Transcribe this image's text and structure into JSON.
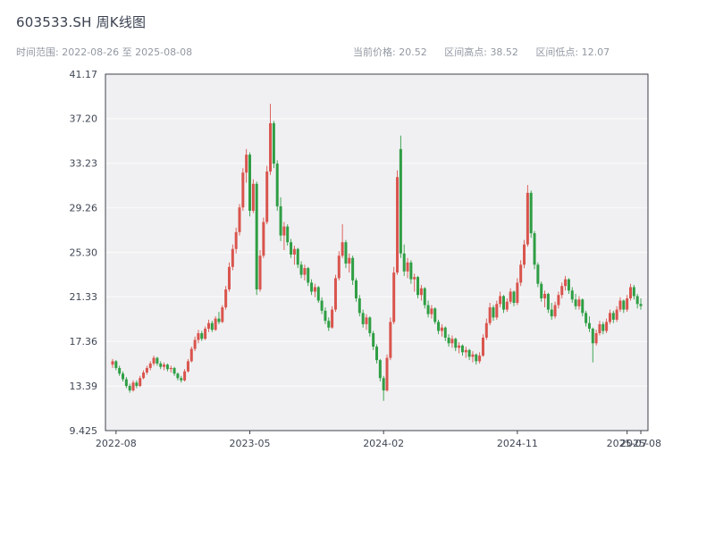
{
  "header": {
    "title": "603533.SH 周K线图",
    "time_range_label": "时间范围:",
    "start_date": "2022-08-26",
    "to_label": "至",
    "end_date": "2025-08-08",
    "metrics": [
      {
        "label": "当前价格:",
        "value": "20.52"
      },
      {
        "label": "区间高点:",
        "value": "38.52"
      },
      {
        "label": "区间低点:",
        "value": "12.07"
      }
    ]
  },
  "chart_data": {
    "type": "candlestick",
    "title": "603533.SH 周K线图",
    "xlabel": "",
    "ylabel": "",
    "grid": "horizontal",
    "legend": "none",
    "y_range": [
      9.425,
      41.17
    ],
    "y_ticks": [
      {
        "label": "41.17",
        "value": 41.17
      },
      {
        "label": "37.20",
        "value": 37.2
      },
      {
        "label": "33.23",
        "value": 33.23
      },
      {
        "label": "29.26",
        "value": 29.26
      },
      {
        "label": "25.30",
        "value": 25.3
      },
      {
        "label": "21.33",
        "value": 21.33
      },
      {
        "label": "17.36",
        "value": 17.36
      },
      {
        "label": "13.39",
        "value": 13.39
      },
      {
        "label": "9.425",
        "value": 9.425
      }
    ],
    "x_ticks": [
      {
        "label": "2022-08",
        "index": 1
      },
      {
        "label": "2023-05",
        "index": 40
      },
      {
        "label": "2024-02",
        "index": 79
      },
      {
        "label": "2024-11",
        "index": 118
      },
      {
        "label": "2025-07",
        "index": 150
      },
      {
        "label": "2025-08",
        "index": 154
      }
    ],
    "up_color": "#d9544d",
    "down_color": "#2f9e44",
    "plot_bg": "#f0f0f2",
    "grid_color": "#fafafb",
    "frame_color": "#3c4048",
    "candles": [
      [
        15.3,
        15.8,
        15.0,
        15.6
      ],
      [
        15.6,
        15.7,
        14.8,
        15.0
      ],
      [
        15.0,
        15.2,
        14.3,
        14.5
      ],
      [
        14.5,
        14.7,
        13.8,
        14.0
      ],
      [
        14.0,
        14.2,
        13.2,
        13.4
      ],
      [
        13.4,
        13.6,
        12.8,
        13.0
      ],
      [
        13.0,
        13.9,
        12.9,
        13.7
      ],
      [
        13.7,
        13.9,
        13.2,
        13.4
      ],
      [
        13.4,
        14.3,
        13.3,
        14.1
      ],
      [
        14.1,
        14.8,
        14.0,
        14.6
      ],
      [
        14.6,
        15.2,
        14.4,
        15.0
      ],
      [
        15.0,
        15.6,
        14.8,
        15.4
      ],
      [
        15.4,
        16.1,
        15.2,
        15.9
      ],
      [
        15.9,
        16.0,
        15.2,
        15.4
      ],
      [
        15.4,
        15.6,
        14.9,
        15.1
      ],
      [
        15.1,
        15.5,
        14.8,
        15.3
      ],
      [
        15.3,
        15.4,
        14.7,
        14.9
      ],
      [
        14.9,
        15.2,
        14.6,
        15.0
      ],
      [
        15.0,
        15.1,
        14.3,
        14.5
      ],
      [
        14.5,
        14.6,
        13.9,
        14.1
      ],
      [
        14.1,
        14.3,
        13.7,
        13.9
      ],
      [
        13.9,
        14.9,
        13.8,
        14.7
      ],
      [
        14.7,
        15.8,
        14.6,
        15.6
      ],
      [
        15.6,
        16.9,
        15.5,
        16.7
      ],
      [
        16.7,
        17.8,
        16.5,
        17.5
      ],
      [
        17.5,
        18.4,
        17.2,
        18.1
      ],
      [
        18.1,
        18.3,
        17.4,
        17.6
      ],
      [
        17.6,
        18.7,
        17.5,
        18.5
      ],
      [
        18.5,
        19.3,
        18.2,
        19.0
      ],
      [
        19.0,
        19.2,
        18.2,
        18.4
      ],
      [
        18.4,
        19.6,
        18.3,
        19.4
      ],
      [
        19.4,
        20.0,
        18.9,
        19.1
      ],
      [
        19.1,
        20.6,
        19.0,
        20.4
      ],
      [
        20.4,
        22.3,
        20.2,
        22.0
      ],
      [
        22.0,
        24.4,
        21.8,
        24.0
      ],
      [
        24.0,
        26.0,
        23.7,
        25.6
      ],
      [
        25.6,
        27.5,
        25.2,
        27.1
      ],
      [
        27.1,
        29.6,
        26.8,
        29.3
      ],
      [
        29.3,
        32.8,
        29.0,
        32.4
      ],
      [
        32.4,
        34.5,
        31.5,
        34.0
      ],
      [
        34.0,
        34.2,
        28.5,
        29.0
      ],
      [
        29.0,
        31.8,
        28.8,
        31.4
      ],
      [
        31.4,
        31.6,
        21.5,
        22.0
      ],
      [
        22.0,
        25.5,
        21.8,
        25.0
      ],
      [
        25.0,
        28.4,
        24.8,
        28.0
      ],
      [
        28.0,
        33.0,
        27.8,
        32.5
      ],
      [
        32.5,
        38.52,
        32.2,
        36.8
      ],
      [
        36.8,
        37.0,
        32.8,
        33.2
      ],
      [
        33.2,
        33.5,
        29.0,
        29.4
      ],
      [
        29.4,
        30.2,
        26.3,
        26.8
      ],
      [
        26.8,
        28.0,
        25.5,
        27.6
      ],
      [
        27.6,
        27.8,
        25.9,
        26.2
      ],
      [
        26.2,
        26.5,
        24.8,
        25.1
      ],
      [
        25.1,
        25.9,
        24.2,
        25.6
      ],
      [
        25.6,
        25.7,
        23.9,
        24.2
      ],
      [
        24.2,
        24.5,
        23.0,
        23.3
      ],
      [
        23.3,
        24.2,
        22.8,
        23.9
      ],
      [
        23.9,
        24.0,
        22.3,
        22.6
      ],
      [
        22.6,
        22.9,
        21.5,
        21.8
      ],
      [
        21.8,
        22.5,
        21.3,
        22.2
      ],
      [
        22.2,
        22.3,
        20.8,
        21.0
      ],
      [
        21.0,
        21.3,
        19.8,
        20.1
      ],
      [
        20.1,
        20.4,
        18.9,
        19.2
      ],
      [
        19.2,
        19.5,
        18.3,
        18.6
      ],
      [
        18.6,
        20.5,
        18.5,
        20.2
      ],
      [
        20.2,
        23.3,
        20.0,
        23.0
      ],
      [
        23.0,
        25.4,
        22.8,
        25.0
      ],
      [
        25.0,
        27.8,
        24.8,
        26.2
      ],
      [
        26.2,
        26.4,
        23.9,
        24.3
      ],
      [
        24.3,
        25.2,
        23.5,
        24.8
      ],
      [
        24.8,
        25.0,
        22.4,
        22.8
      ],
      [
        22.8,
        23.0,
        20.9,
        21.2
      ],
      [
        21.2,
        21.5,
        19.6,
        19.9
      ],
      [
        19.9,
        20.2,
        18.6,
        18.9
      ],
      [
        18.9,
        19.8,
        18.4,
        19.5
      ],
      [
        19.5,
        19.6,
        17.8,
        18.1
      ],
      [
        18.1,
        18.3,
        16.6,
        16.9
      ],
      [
        16.9,
        17.1,
        15.4,
        15.7
      ],
      [
        15.7,
        15.8,
        13.8,
        14.1
      ],
      [
        14.1,
        14.3,
        12.07,
        13.0
      ],
      [
        13.0,
        16.2,
        12.9,
        15.9
      ],
      [
        15.9,
        19.5,
        15.7,
        19.1
      ],
      [
        19.1,
        24.0,
        18.9,
        23.5
      ],
      [
        23.5,
        32.6,
        23.3,
        32.0
      ],
      [
        34.5,
        35.7,
        24.8,
        25.2
      ],
      [
        25.2,
        26.0,
        23.2,
        23.6
      ],
      [
        23.6,
        24.8,
        23.0,
        24.4
      ],
      [
        24.4,
        24.6,
        22.5,
        22.9
      ],
      [
        22.9,
        23.4,
        21.8,
        23.1
      ],
      [
        23.1,
        23.2,
        21.2,
        21.5
      ],
      [
        21.5,
        22.4,
        21.0,
        22.1
      ],
      [
        22.1,
        22.2,
        20.3,
        20.6
      ],
      [
        20.6,
        21.0,
        19.5,
        19.8
      ],
      [
        19.8,
        20.6,
        19.4,
        20.3
      ],
      [
        20.3,
        20.4,
        18.9,
        19.1
      ],
      [
        19.1,
        19.3,
        18.0,
        18.3
      ],
      [
        18.3,
        18.9,
        17.8,
        18.6
      ],
      [
        18.6,
        18.7,
        17.4,
        17.7
      ],
      [
        17.7,
        18.0,
        16.9,
        17.2
      ],
      [
        17.2,
        17.9,
        16.8,
        17.6
      ],
      [
        17.6,
        17.7,
        16.5,
        16.8
      ],
      [
        16.8,
        17.3,
        16.3,
        17.0
      ],
      [
        17.0,
        17.1,
        16.1,
        16.4
      ],
      [
        16.4,
        16.9,
        15.9,
        16.6
      ],
      [
        16.6,
        16.7,
        15.7,
        16.0
      ],
      [
        16.0,
        16.5,
        15.5,
        16.2
      ],
      [
        16.2,
        16.3,
        15.3,
        15.6
      ],
      [
        15.6,
        16.4,
        15.4,
        16.1
      ],
      [
        16.1,
        18.0,
        16.0,
        17.7
      ],
      [
        17.7,
        19.4,
        17.5,
        19.0
      ],
      [
        19.0,
        20.8,
        18.8,
        20.4
      ],
      [
        20.4,
        20.6,
        19.2,
        19.5
      ],
      [
        19.5,
        21.0,
        19.3,
        20.7
      ],
      [
        20.7,
        21.8,
        20.4,
        21.4
      ],
      [
        21.4,
        21.5,
        19.9,
        20.2
      ],
      [
        20.2,
        21.2,
        20.0,
        20.9
      ],
      [
        20.9,
        22.1,
        20.7,
        21.8
      ],
      [
        21.8,
        21.9,
        20.5,
        20.8
      ],
      [
        20.8,
        23.0,
        20.6,
        22.6
      ],
      [
        22.6,
        24.6,
        22.3,
        24.2
      ],
      [
        24.2,
        26.4,
        23.9,
        26.0
      ],
      [
        26.0,
        31.3,
        25.8,
        30.6
      ],
      [
        30.6,
        30.8,
        26.6,
        27.0
      ],
      [
        27.0,
        27.2,
        23.8,
        24.2
      ],
      [
        24.2,
        24.4,
        22.2,
        22.5
      ],
      [
        22.5,
        22.7,
        20.9,
        21.2
      ],
      [
        21.2,
        21.9,
        20.4,
        21.6
      ],
      [
        21.6,
        21.7,
        19.9,
        20.2
      ],
      [
        20.2,
        20.8,
        19.3,
        19.6
      ],
      [
        19.6,
        20.9,
        19.4,
        20.6
      ],
      [
        20.6,
        21.8,
        20.3,
        21.5
      ],
      [
        21.5,
        22.6,
        21.2,
        22.3
      ],
      [
        22.3,
        23.2,
        21.9,
        22.9
      ],
      [
        22.9,
        23.0,
        21.6,
        21.9
      ],
      [
        21.9,
        22.2,
        20.8,
        21.1
      ],
      [
        21.1,
        21.6,
        20.2,
        20.5
      ],
      [
        20.5,
        21.4,
        20.2,
        21.1
      ],
      [
        21.1,
        21.2,
        19.6,
        19.9
      ],
      [
        19.9,
        20.1,
        18.7,
        19.0
      ],
      [
        19.0,
        19.6,
        18.2,
        18.5
      ],
      [
        18.5,
        18.6,
        15.5,
        17.2
      ],
      [
        17.2,
        18.4,
        17.0,
        18.1
      ],
      [
        18.1,
        19.2,
        17.9,
        18.9
      ],
      [
        18.9,
        19.1,
        18.0,
        18.3
      ],
      [
        18.3,
        19.4,
        18.1,
        19.1
      ],
      [
        19.1,
        20.2,
        18.9,
        19.9
      ],
      [
        19.9,
        20.1,
        19.0,
        19.3
      ],
      [
        19.3,
        20.5,
        19.1,
        20.2
      ],
      [
        20.2,
        21.3,
        20.0,
        21.0
      ],
      [
        21.0,
        21.1,
        19.9,
        20.2
      ],
      [
        20.2,
        21.5,
        20.0,
        21.2
      ],
      [
        21.2,
        22.5,
        21.0,
        22.2
      ],
      [
        22.2,
        22.4,
        21.1,
        21.4
      ],
      [
        21.4,
        21.6,
        20.3,
        20.7
      ],
      [
        20.7,
        21.2,
        20.2,
        20.52
      ]
    ]
  }
}
